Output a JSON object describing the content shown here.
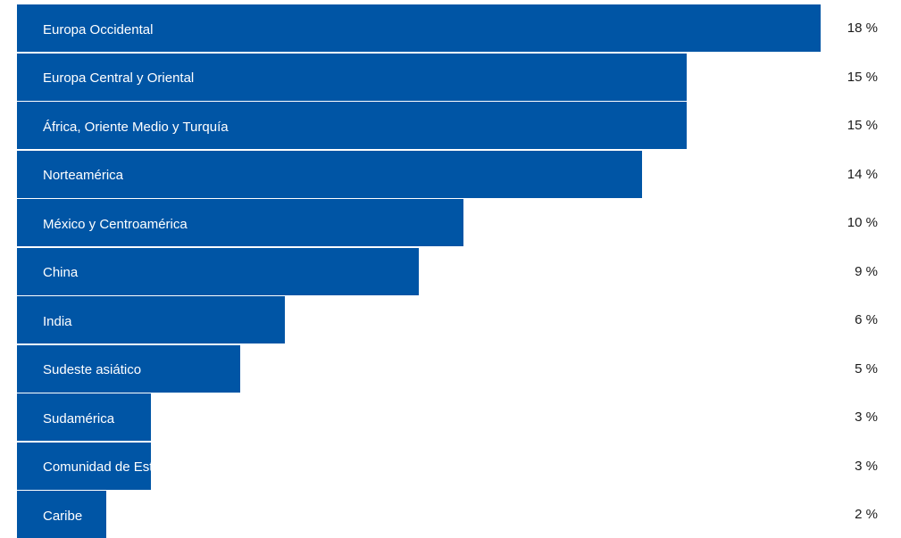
{
  "chart_data": {
    "type": "bar",
    "orientation": "horizontal",
    "categories": [
      "Europa Occidental",
      "Europa Central y Oriental",
      "África, Oriente Medio y Turquía",
      "Norteamérica",
      "México y Centroamérica",
      "China",
      "India",
      "Sudeste asiático",
      "Sudamérica",
      "Comunidad de Estados Independientes",
      "Caribe"
    ],
    "values": [
      18,
      15,
      15,
      14,
      10,
      9,
      6,
      5,
      3,
      3,
      2
    ],
    "value_labels": [
      "18 %",
      "15 %",
      "15 %",
      "14 %",
      "10 %",
      "9 %",
      "6 %",
      "5 %",
      "3 %",
      "3 %",
      "2 %"
    ],
    "title": "",
    "xlabel": "",
    "ylabel": "",
    "grid": false,
    "legend": "none",
    "colors": {
      "bar": "#0055a5",
      "bar_text": "#ffffff",
      "value_text": "#1a1a1a",
      "background": "#ffffff"
    }
  }
}
